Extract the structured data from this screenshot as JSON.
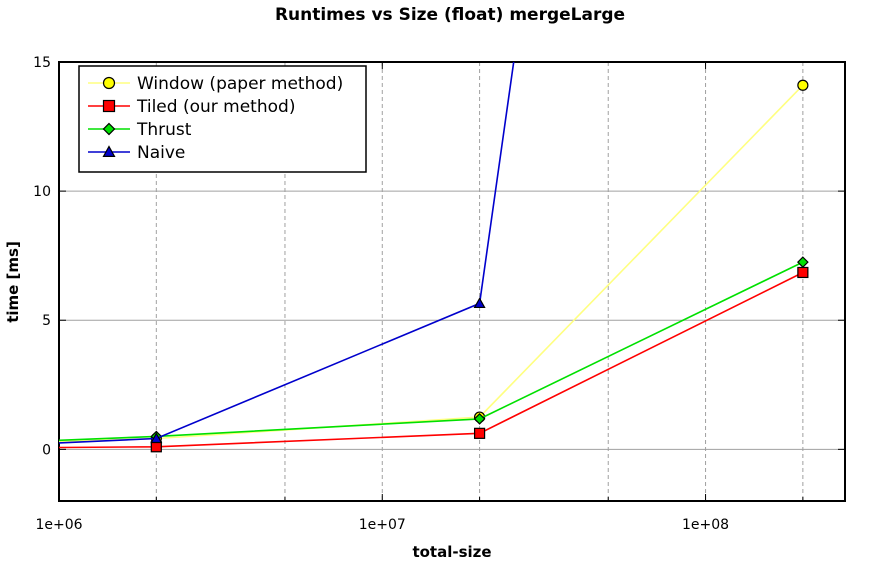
{
  "chart_data": {
    "type": "line",
    "title": "Runtimes vs Size (float) mergeLarge",
    "xlabel": "total-size",
    "ylabel": "time [ms]",
    "xscale": "log",
    "xlim": [
      1000000,
      270000000
    ],
    "ylim": [
      -2,
      15
    ],
    "xticks": [
      1000000,
      10000000,
      100000000
    ],
    "xtick_labels": [
      "1e+06",
      "1e+07",
      "1e+08"
    ],
    "x_gridlines": [
      2000000,
      5000000,
      20000000,
      50000000,
      200000000
    ],
    "yticks": [
      0,
      5,
      10,
      15
    ],
    "ytick_labels": [
      "0",
      "5",
      "10",
      "15"
    ],
    "grid": true,
    "legend_position": "top-left",
    "series": [
      {
        "name": "Window (paper method)",
        "color": "#ffff00",
        "line_color": "#ffff80",
        "marker": "circle",
        "x": [
          1000000,
          2000000,
          20000000,
          200000000
        ],
        "y": [
          0.3,
          0.42,
          1.25,
          14.1
        ]
      },
      {
        "name": "Tiled (our method)",
        "color": "#ff0000",
        "line_color": "#ff0000",
        "marker": "square",
        "x": [
          1000000,
          2000000,
          20000000,
          200000000
        ],
        "y": [
          0.07,
          0.1,
          0.62,
          6.85
        ]
      },
      {
        "name": "Thrust",
        "color": "#00e000",
        "line_color": "#00e000",
        "marker": "diamond",
        "x": [
          1000000,
          2000000,
          20000000,
          200000000
        ],
        "y": [
          0.35,
          0.5,
          1.18,
          7.25
        ]
      },
      {
        "name": "Naive",
        "color": "#0000cc",
        "line_color": "#0000cc",
        "marker": "triangle",
        "x": [
          1000000,
          2000000,
          20000000,
          25500000
        ],
        "y": [
          0.25,
          0.42,
          5.65,
          15.0
        ]
      }
    ]
  }
}
